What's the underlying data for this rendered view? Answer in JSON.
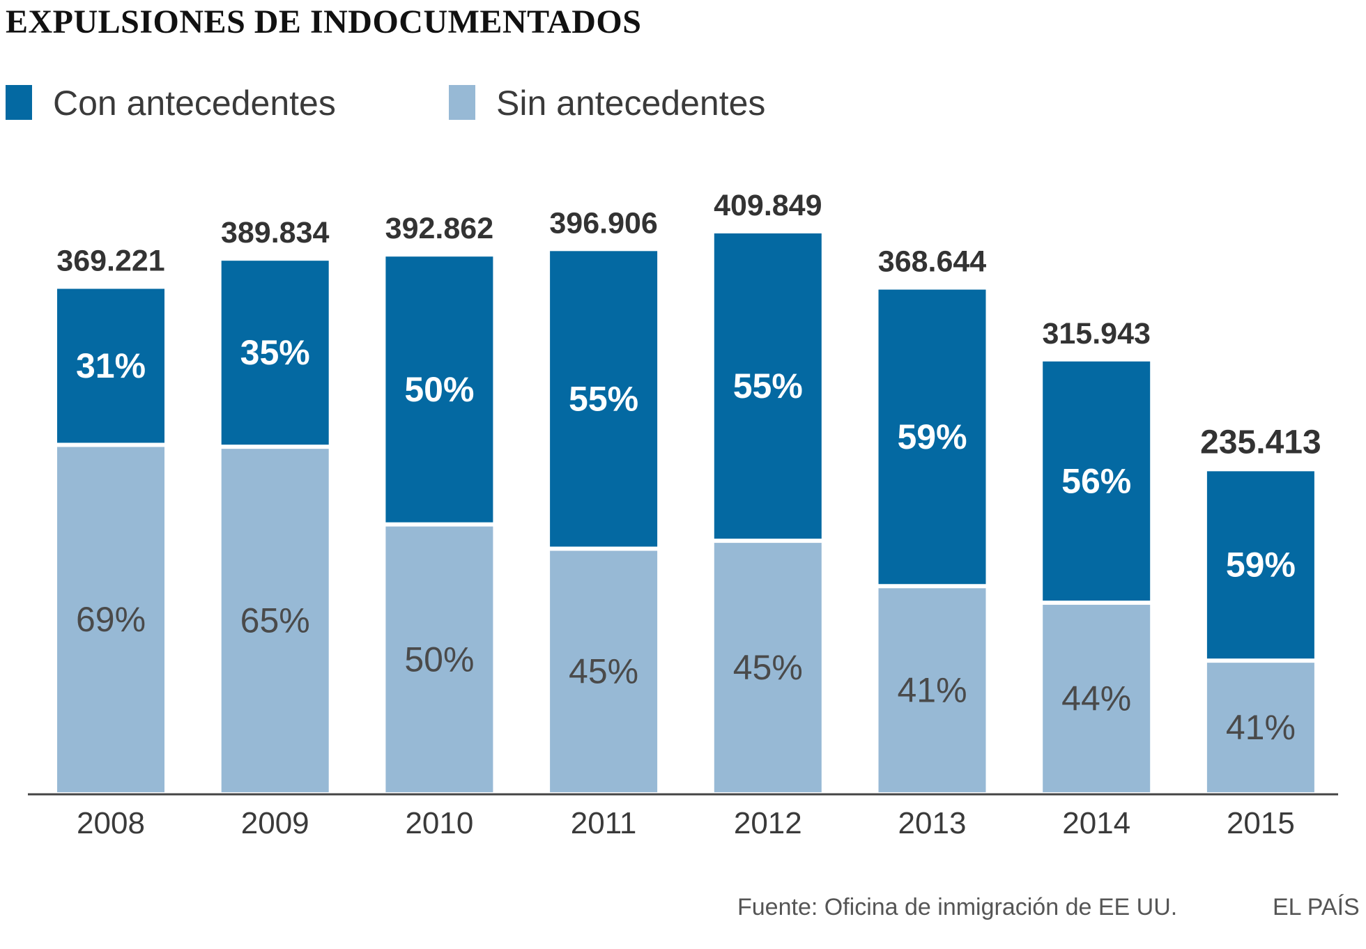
{
  "colors": {
    "con": "#0469a2",
    "sin": "#97b9d5",
    "total_text": "#333333",
    "axis": "#444444"
  },
  "chart_data": {
    "type": "bar",
    "stacked": true,
    "title": "EXPULSIONES DE INDOCUMENTADOS",
    "categories": [
      "2008",
      "2009",
      "2010",
      "2011",
      "2012",
      "2013",
      "2014",
      "2015"
    ],
    "totals": [
      369221,
      389834,
      392862,
      396906,
      409849,
      368644,
      315943,
      235413
    ],
    "total_labels": [
      "369.221",
      "389.834",
      "392.862",
      "396.906",
      "409.849",
      "368.644",
      "315.943",
      "235.413"
    ],
    "series": [
      {
        "name": "Con antecedentes",
        "percent": [
          31,
          35,
          50,
          55,
          55,
          59,
          56,
          59
        ],
        "labels": [
          "31%",
          "35%",
          "50%",
          "55%",
          "55%",
          "59%",
          "56%",
          "59%"
        ]
      },
      {
        "name": "Sin antecedentes",
        "percent": [
          69,
          65,
          50,
          45,
          45,
          41,
          44,
          41
        ],
        "labels": [
          "69%",
          "65%",
          "50%",
          "45%",
          "45%",
          "41%",
          "44%",
          "41%"
        ]
      }
    ],
    "xlabel": "",
    "ylabel": "",
    "ylim": [
      0,
      409849
    ],
    "legend": "top-left",
    "grid": false
  },
  "source": "Fuente: Oficina de inmigración de EE UU.",
  "brand": "EL PAÍS"
}
